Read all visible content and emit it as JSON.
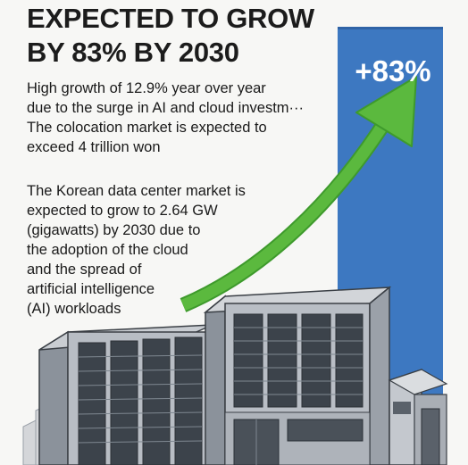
{
  "headline": {
    "line1": "EXPECTED TO GROW",
    "line2": "BY 83% BY 2030"
  },
  "growth_badge": "+83%",
  "paragraph_1": [
    "High growth of 12.9% year over year",
    "due to the surge in AI and cloud investm···",
    "The colocation market is expected to",
    "exceed 4 trillion won"
  ],
  "paragraph_2": [
    "The Korean data center market is",
    "expected to grow to 2.64 GW",
    "(gigawatts) by 2030 due to",
    "the adoption of the cloud",
    "and the spread of",
    "artificial intelligence",
    "(AI) workloads"
  ],
  "colors": {
    "bar_blue": "#3d78c1",
    "arrow_green": "#5bb93e",
    "building_gray": "#9aa0a8",
    "building_dark": "#3c434b",
    "text": "#1a1a1a"
  },
  "icons": [
    "growth-arrow-icon",
    "data-center-building-icon"
  ]
}
